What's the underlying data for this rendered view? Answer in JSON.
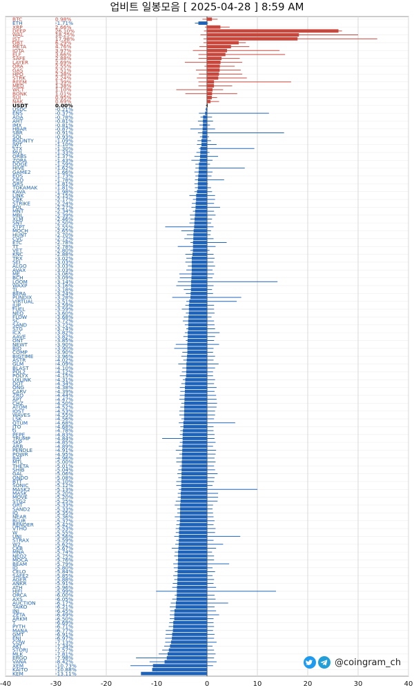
{
  "title": "업비트 일봉모음 [ 2025-04-28 ]  8:59 AM",
  "watermark": "@coingram_ch",
  "icons": [
    "twitter-icon",
    "telegram-icon"
  ],
  "colors": {
    "up": "#c8473c",
    "down": "#1f63b8",
    "neutral": "#000000",
    "grid": "#d8d8d8"
  },
  "chart_data": {
    "type": "bar",
    "orientation": "horizontal",
    "title": "업비트 일봉모음 [ 2025-04-28 ]  8:59 AM",
    "xlim": [
      -40,
      40
    ],
    "xticks": [
      -40,
      -30,
      -20,
      -10,
      0,
      10,
      20,
      30,
      40
    ],
    "grid": true,
    "categories": [
      "BTC",
      "ETH",
      "XRP",
      "DEEP",
      "WAL",
      "JST",
      "OBT",
      "META",
      "IOTA",
      "ELF",
      "SAFE",
      "LAYER",
      "ORA",
      "GAS",
      "HPO",
      "STRK",
      "REEM",
      "MED",
      "WCT",
      "BONK",
      "SUI",
      "NAK",
      "USDT",
      "USDC",
      "ENS",
      "ADA",
      "AHT",
      "IMX",
      "HBAR",
      "SBR",
      "SOL",
      "BOUNTY",
      "JWT",
      "STX",
      "MVL",
      "ORBS",
      "ZORA",
      "DOGE",
      "HIVE",
      "GAME2",
      "EOS",
      "CRO",
      "GRS",
      "TOKAMAK",
      "KAVA",
      "LINK",
      "CBK",
      "STRIKE",
      "POL",
      "MNT",
      "MBL",
      "XLM",
      "SNT",
      "STPT",
      "MOCH",
      "HUNT",
      "CVC",
      "ETC",
      "TT",
      "VET",
      "KNC",
      "TRX",
      "SEI",
      "ALGO",
      "AVAX",
      "ME",
      "BCH",
      "LOOM",
      "WAXP",
      "TL",
      "BERA",
      "PUNDIX",
      "VIRTUAL",
      "JUP",
      "FUEL",
      "NEO",
      "FLOW",
      "SC",
      "SAND",
      "STG",
      "ICX",
      "AAVE",
      "ONT",
      "NEWT",
      "BIO",
      "COMP",
      "BIGTIME",
      "ASTR",
      "GLM",
      "BLAST",
      "POL2",
      "POLYX",
      "UXLINK",
      "DOT",
      "ONG",
      "CARV",
      "ZRO",
      "APT",
      "CHZ",
      "ATOM",
      "IOST",
      "WAVES",
      "LSK",
      "QTUM",
      "JTO",
      "G",
      "PEPE",
      "TRUMP",
      "SKP",
      "ARB",
      "PENDLE",
      "POWR",
      "BAT",
      "MTL",
      "THETA",
      "SHIB",
      "GAL",
      "ONDO",
      "BTT",
      "SONIC",
      "MASK2",
      "MASK",
      "MOVE",
      "STG2",
      "GRT",
      "SAND2",
      "IQ",
      "NEAR",
      "BLUR",
      "RENDER",
      "VTHO",
      "W",
      "UNI",
      "STRAX",
      "W2",
      "CKB",
      "MNA",
      "NEO2",
      "MOCA",
      "BEAM",
      "ID",
      "CELO",
      "SAFE2",
      "AGER",
      "ANKR",
      "ATH",
      "HIFI",
      "ORCA",
      "AXS",
      "AUCTION",
      "TAIKO",
      "INJ",
      "ZETA",
      "ARKM",
      "T",
      "PYTH",
      "MANA",
      "GMT",
      "ENJ",
      "COW",
      "AKT",
      "STORJ",
      "MLK",
      "ERGO",
      "VANA",
      "XEM",
      "KAITO",
      "KEM"
    ],
    "values": [
      0.98,
      -1.71,
      2.66,
      26.1,
      18.25,
      17.98,
      6.29,
      4.76,
      3.97,
      3.66,
      2.88,
      2.69,
      2.55,
      2.51,
      2.38,
      2.24,
      1.39,
      1.38,
      1.1,
      1.01,
      0.95,
      0.69,
      0.0,
      -0.21,
      -0.37,
      -0.78,
      -0.81,
      -0.81,
      -0.87,
      -0.91,
      -0.93,
      -1.09,
      -1.1,
      -1.3,
      -1.33,
      -1.37,
      -1.43,
      -1.59,
      -1.62,
      -1.66,
      -1.73,
      -1.78,
      -1.81,
      -1.81,
      -1.98,
      -2.15,
      -2.17,
      -2.24,
      -2.27,
      -2.34,
      -2.39,
      -2.46,
      -2.5,
      -2.55,
      -2.65,
      -2.7,
      -2.72,
      -2.78,
      -2.78,
      -2.8,
      -2.88,
      -3.02,
      -3.03,
      -3.03,
      -3.03,
      -3.06,
      -3.09,
      -3.14,
      -3.16,
      -3.18,
      -3.24,
      -3.28,
      -3.51,
      -3.59,
      -3.59,
      -3.6,
      -3.68,
      -3.72,
      -3.72,
      -3.74,
      -3.82,
      -3.82,
      -3.85,
      -3.9,
      -3.9,
      -3.9,
      -3.96,
      -4.02,
      -4.09,
      -4.1,
      -4.12,
      -4.15,
      -4.31,
      -4.34,
      -4.38,
      -4.39,
      -4.44,
      -4.47,
      -4.5,
      -4.52,
      -4.53,
      -4.55,
      -4.56,
      -4.68,
      -4.68,
      -4.78,
      -4.83,
      -4.84,
      -4.85,
      -4.89,
      -4.91,
      -4.95,
      -4.96,
      -5.0,
      -5.01,
      -5.04,
      -5.06,
      -5.08,
      -5.1,
      -5.12,
      -5.13,
      -5.2,
      -5.2,
      -5.25,
      -5.33,
      -5.33,
      -5.35,
      -5.36,
      -5.37,
      -5.42,
      -5.53,
      -5.55,
      -5.56,
      -5.59,
      -5.62,
      -5.67,
      -5.74,
      -5.75,
      -5.76,
      -5.79,
      -5.8,
      -5.84,
      -5.85,
      -5.88,
      -5.91,
      -5.96,
      -5.99,
      -6.0,
      -6.05,
      -6.17,
      -6.21,
      -6.45,
      -6.49,
      -6.5,
      -6.69,
      -6.71,
      -6.77,
      -6.91,
      -6.97,
      -7.13,
      -7.34,
      -7.57,
      -7.81,
      -7.98,
      -8.42,
      -10.73,
      -10.88,
      -13.11
    ],
    "wicks": [
      [
        -0.9,
        2.1
      ],
      [
        -2.4,
        0.2
      ],
      [
        -0.4,
        4.5
      ],
      [
        -0.6,
        26.8
      ],
      [
        -1.3,
        30.0
      ],
      [
        -0.7,
        33.8
      ],
      [
        -0.7,
        7.7
      ],
      [
        -1.5,
        8.4
      ],
      [
        -2.8,
        14.4
      ],
      [
        -1.7,
        15.5
      ],
      [
        -1.7,
        6.5
      ],
      [
        -4.4,
        7.0
      ],
      [
        -0.5,
        5.5
      ],
      [
        -2.2,
        6.7
      ],
      [
        -1.6,
        7.0
      ],
      [
        -2.0,
        7.9
      ],
      [
        -1.7,
        16.7
      ],
      [
        -1.7,
        5.0
      ],
      [
        -6.1,
        3.2
      ],
      [
        -4.3,
        6.0
      ],
      [
        -0.1,
        2.0
      ],
      [
        0.0,
        2.4
      ],
      [
        -0.2,
        0.1
      ],
      [
        -0.3,
        0.1
      ],
      [
        -1.6,
        12.3
      ],
      [
        -1.3,
        1.0
      ],
      [
        -1.8,
        1.2
      ],
      [
        -1.5,
        0.6
      ],
      [
        -3.3,
        1.6
      ],
      [
        -1.8,
        15.3
      ],
      [
        -1.4,
        0.4
      ],
      [
        -1.9,
        0.8
      ],
      [
        -2.0,
        1.9
      ],
      [
        -1.6,
        9.4
      ],
      [
        -2.1,
        0.5
      ],
      [
        -2.5,
        2.2
      ],
      [
        -3.1,
        1.1
      ],
      [
        -2.3,
        0.6
      ],
      [
        -2.3,
        7.5
      ],
      [
        -2.5,
        1.1
      ],
      [
        -2.3,
        0.9
      ],
      [
        -2.4,
        3.4
      ],
      [
        -2.5,
        0.2
      ],
      [
        -2.4,
        0.8
      ],
      [
        -2.5,
        1.0
      ],
      [
        -3.5,
        1.6
      ],
      [
        -2.8,
        1.6
      ],
      [
        -3.0,
        1.4
      ],
      [
        -3.1,
        2.6
      ],
      [
        -2.8,
        1.4
      ],
      [
        -3.4,
        1.7
      ],
      [
        -3.3,
        1.0
      ],
      [
        -3.5,
        0.8
      ],
      [
        -8.3,
        1.3
      ],
      [
        -5.1,
        0.8
      ],
      [
        -4.0,
        0.7
      ],
      [
        -4.5,
        1.3
      ],
      [
        -3.3,
        3.9
      ],
      [
        -5.8,
        1.7
      ],
      [
        -3.3,
        0.5
      ],
      [
        -4.3,
        1.3
      ],
      [
        -4.1,
        1.5
      ],
      [
        -4.3,
        1.3
      ],
      [
        -3.8,
        1.6
      ],
      [
        -4.1,
        1.1
      ],
      [
        -5.5,
        1.4
      ],
      [
        -5.4,
        1.1
      ],
      [
        -5.8,
        14.0
      ],
      [
        -6.1,
        1.3
      ],
      [
        -4.6,
        1.0
      ],
      [
        -4.2,
        1.2
      ],
      [
        -6.9,
        6.8
      ],
      [
        -4.1,
        5.9
      ],
      [
        -4.3,
        1.4
      ],
      [
        -5.0,
        1.4
      ],
      [
        -4.2,
        1.5
      ],
      [
        -4.6,
        0.9
      ],
      [
        -4.8,
        1.4
      ],
      [
        -4.4,
        1.5
      ],
      [
        -4.1,
        1.6
      ],
      [
        -4.4,
        2.5
      ],
      [
        -4.7,
        1.6
      ],
      [
        -4.2,
        1.4
      ],
      [
        -6.2,
        2.4
      ],
      [
        -6.5,
        1.3
      ],
      [
        -4.9,
        1.2
      ],
      [
        -5.1,
        1.6
      ],
      [
        -4.7,
        1.3
      ],
      [
        -5.7,
        2.3
      ],
      [
        -4.9,
        1.6
      ],
      [
        -5.0,
        1.2
      ],
      [
        -5.4,
        1.2
      ],
      [
        -4.8,
        1.6
      ],
      [
        -5.1,
        1.4
      ],
      [
        -5.4,
        1.9
      ],
      [
        -5.3,
        1.5
      ],
      [
        -5.4,
        1.8
      ],
      [
        -5.5,
        1.9
      ],
      [
        -5.1,
        2.0
      ],
      [
        -5.3,
        1.9
      ],
      [
        -5.5,
        1.6
      ],
      [
        -5.5,
        1.6
      ],
      [
        -5.1,
        1.4
      ],
      [
        -5.6,
        5.6
      ],
      [
        -5.3,
        1.3
      ],
      [
        -5.3,
        1.3
      ],
      [
        -5.4,
        1.5
      ],
      [
        -8.9,
        1.5
      ],
      [
        -5.4,
        1.7
      ],
      [
        -5.6,
        1.2
      ],
      [
        -6.2,
        1.8
      ],
      [
        -5.5,
        1.7
      ],
      [
        -6.1,
        1.5
      ],
      [
        -6.1,
        1.7
      ],
      [
        -5.4,
        1.4
      ],
      [
        -5.7,
        1.6
      ],
      [
        -5.9,
        2.1
      ],
      [
        -5.7,
        1.5
      ],
      [
        -6.1,
        1.4
      ],
      [
        -6.1,
        1.1
      ],
      [
        -5.6,
        10.0
      ],
      [
        -5.8,
        2.2
      ],
      [
        -5.8,
        2.2
      ],
      [
        -6.2,
        2.1
      ],
      [
        -6.4,
        1.2
      ],
      [
        -5.9,
        1.1
      ],
      [
        -5.9,
        1.2
      ],
      [
        -6.4,
        1.3
      ],
      [
        -6.0,
        1.5
      ],
      [
        -6.1,
        1.3
      ],
      [
        -6.2,
        1.7
      ],
      [
        -6.2,
        1.6
      ],
      [
        -6.5,
        6.6
      ],
      [
        -6.1,
        1.3
      ],
      [
        -6.3,
        3.2
      ],
      [
        -7.0,
        1.8
      ],
      [
        -6.4,
        1.0
      ],
      [
        -6.5,
        1.4
      ],
      [
        -6.2,
        1.4
      ],
      [
        -6.7,
        4.4
      ],
      [
        -6.6,
        1.1
      ],
      [
        -6.4,
        1.6
      ],
      [
        -6.7,
        1.1
      ],
      [
        -6.5,
        1.4
      ],
      [
        -6.8,
        1.3
      ],
      [
        -6.9,
        1.8
      ],
      [
        -10.1,
        13.7
      ],
      [
        -6.4,
        1.5
      ],
      [
        -6.9,
        1.7
      ],
      [
        -7.2,
        4.2
      ],
      [
        -7.4,
        1.5
      ],
      [
        -7.3,
        1.8
      ],
      [
        -7.4,
        2.4
      ],
      [
        -7.4,
        1.3
      ],
      [
        -7.5,
        1.3
      ],
      [
        -7.6,
        1.4
      ],
      [
        -8.2,
        1.2
      ],
      [
        -8.2,
        1.5
      ],
      [
        -8.3,
        1.4
      ],
      [
        -8.3,
        1.9
      ],
      [
        -8.5,
        1.1
      ],
      [
        -8.9,
        1.4
      ],
      [
        -9.6,
        1.7
      ],
      [
        -14.1,
        1.4
      ],
      [
        -11.4,
        1.9
      ],
      [
        -15.2,
        1.2
      ]
    ],
    "value_labels": [
      "0.98%",
      "-1.71%",
      "2.66%",
      "26.10%",
      "18.25%",
      "17.98%",
      "6.29%",
      "4.76%",
      "3.97%",
      "3.66%",
      "2.88%",
      "2.69%",
      "2.55%",
      "2.51%",
      "2.38%",
      "2.24%",
      "1.39%",
      "1.38%",
      "1.10%",
      "1.01%",
      "0.95%",
      "0.69%",
      "0.00%",
      "-0.21%",
      "-0.37%",
      "-0.78%",
      "-0.81%",
      "-0.81%",
      "-0.87%",
      "-0.91%",
      "-0.93%",
      "-1.09%",
      "-1.10%",
      "-1.30%",
      "-1.33%",
      "-1.37%",
      "-1.43%",
      "-1.59%",
      "-1.62%",
      "-1.66%",
      "-1.73%",
      "-1.78%",
      "-1.81%",
      "-1.81%",
      "-1.98%",
      "-2.15%",
      "-2.17%",
      "-2.24%",
      "-2.27%",
      "-2.34%",
      "-2.39%",
      "-2.46%",
      "-2.50%",
      "-2.55%",
      "-2.65%",
      "-2.70%",
      "-2.72%",
      "-2.78%",
      "-2.78%",
      "-2.80%",
      "-2.88%",
      "-3.02%",
      "-3.03%",
      "-3.03%",
      "-3.03%",
      "-3.06%",
      "-3.09%",
      "-3.14%",
      "-3.16%",
      "-3.18%",
      "-3.24%",
      "-3.28%",
      "-3.51%",
      "-3.59%",
      "-3.59%",
      "-3.60%",
      "-3.68%",
      "-3.72%",
      "-3.72%",
      "-3.74%",
      "-3.82%",
      "-3.82%",
      "-3.85%",
      "-3.90%",
      "-3.90%",
      "-3.90%",
      "-3.96%",
      "-4.02%",
      "-4.09%",
      "-4.10%",
      "-4.12%",
      "-4.15%",
      "-4.31%",
      "-4.34%",
      "-4.38%",
      "-4.39%",
      "-4.44%",
      "-4.47%",
      "-4.50%",
      "-4.52%",
      "-4.53%",
      "-4.55%",
      "-4.56%",
      "-4.68%",
      "-4.68%",
      "-4.78%",
      "-4.83%",
      "-4.84%",
      "-4.85%",
      "-4.89%",
      "-4.91%",
      "-4.95%",
      "-4.96%",
      "-5.00%",
      "-5.01%",
      "-5.04%",
      "-5.06%",
      "-5.08%",
      "-5.10%",
      "-5.12%",
      "-5.13%",
      "-5.20%",
      "-5.20%",
      "-5.25%",
      "-5.33%",
      "-5.33%",
      "-5.35%",
      "-5.36%",
      "-5.37%",
      "-5.42%",
      "-5.53%",
      "-5.55%",
      "-5.56%",
      "-5.59%",
      "-5.62%",
      "-5.67%",
      "-5.74%",
      "-5.75%",
      "-5.76%",
      "-5.79%",
      "-5.80%",
      "-5.84%",
      "-5.85%",
      "-5.88%",
      "-5.91%",
      "-5.96%",
      "-5.99%",
      "-6.00%",
      "-6.05%",
      "-6.17%",
      "-6.21%",
      "-6.45%",
      "-6.49%",
      "-6.50%",
      "-6.69%",
      "-6.71%",
      "-6.77%",
      "-6.91%",
      "-6.97%",
      "-7.13%",
      "-7.34%",
      "-7.57%",
      "-7.81%",
      "-7.98%",
      "-8.42%",
      "-10.73%",
      "-10.88%",
      "-13.11%"
    ]
  }
}
